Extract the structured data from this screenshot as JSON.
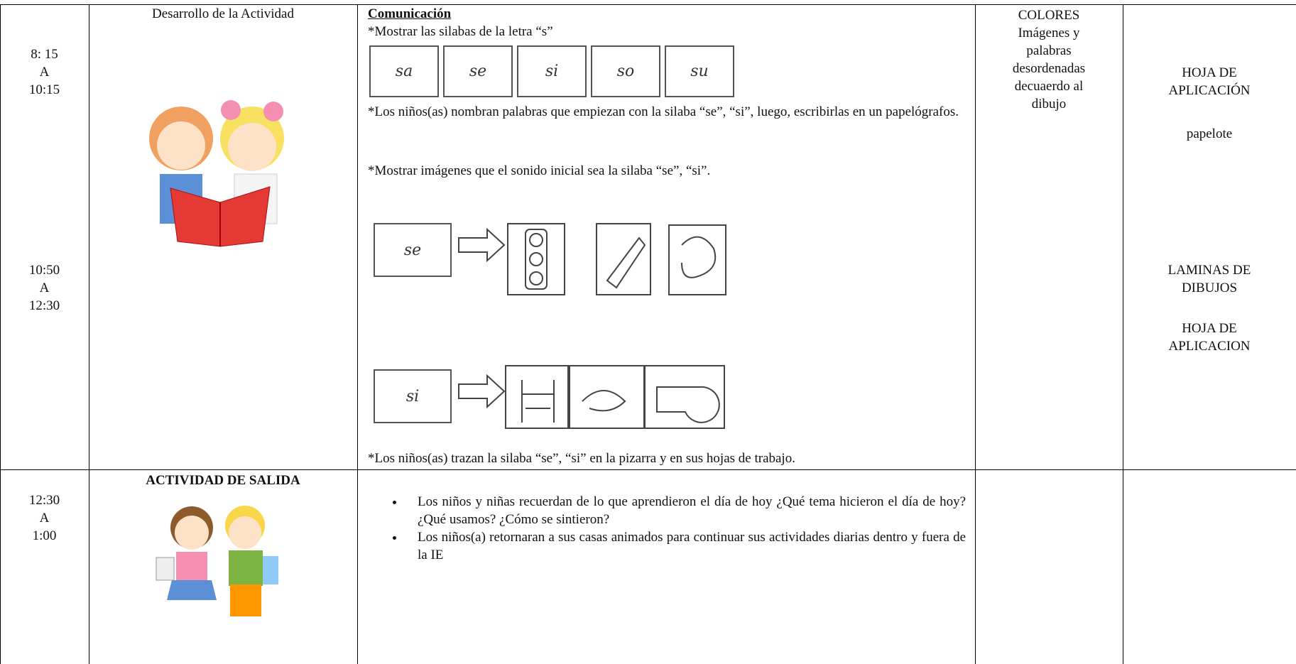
{
  "table": {
    "rows": [
      {
        "time": [
          "8: 15",
          "A",
          "10:15"
        ],
        "time_2": [
          "10:50",
          "A",
          "12:30"
        ],
        "activity": "Desarrollo de la Actividad",
        "content": {
          "heading": "Comunicación",
          "step_1": "*Mostrar las silabas de la letra  “s”",
          "syllables": [
            "sa",
            "se",
            "si",
            "so",
            "su"
          ],
          "step_2": "*Los niños(as) nombran palabras que empiezan con la silaba “se”, “si”, luego, escribirlas en un papelógrafos.",
          "step_3": "*Mostrar imágenes que el sonido inicial sea la silaba “se”, “si”.",
          "picture_cards": [
            "se",
            "si"
          ],
          "step_4": "*Los niños(as) trazan la silaba “se”, “si” en la pizarra y en sus hojas de trabajo."
        },
        "materials": [
          "COLORES",
          "Imágenes  y",
          "palabras",
          "desordenadas",
          "decuaerdo al",
          "dibujo"
        ],
        "resources": [
          [
            "HOJA DE",
            "APLICACIÓN"
          ],
          [
            "papelote"
          ],
          [
            "LAMINAS  DE",
            "DIBUJOS"
          ],
          [
            "HOJA DE",
            "APLICACION"
          ]
        ]
      },
      {
        "time": [
          "12:30",
          "A",
          "1:00"
        ],
        "activity": "ACTIVIDAD DE SALIDA",
        "bullets": [
          "Los niños y niñas recuerdan de lo que aprendieron el día de hoy ¿Qué tema hicieron el día de hoy? ¿Qué usamos? ¿Cómo se sintieron?",
          "Los niños(a) retornaran a sus casas animados para continuar sus actividades diarias dentro y fuera de la IE"
        ]
      }
    ]
  }
}
